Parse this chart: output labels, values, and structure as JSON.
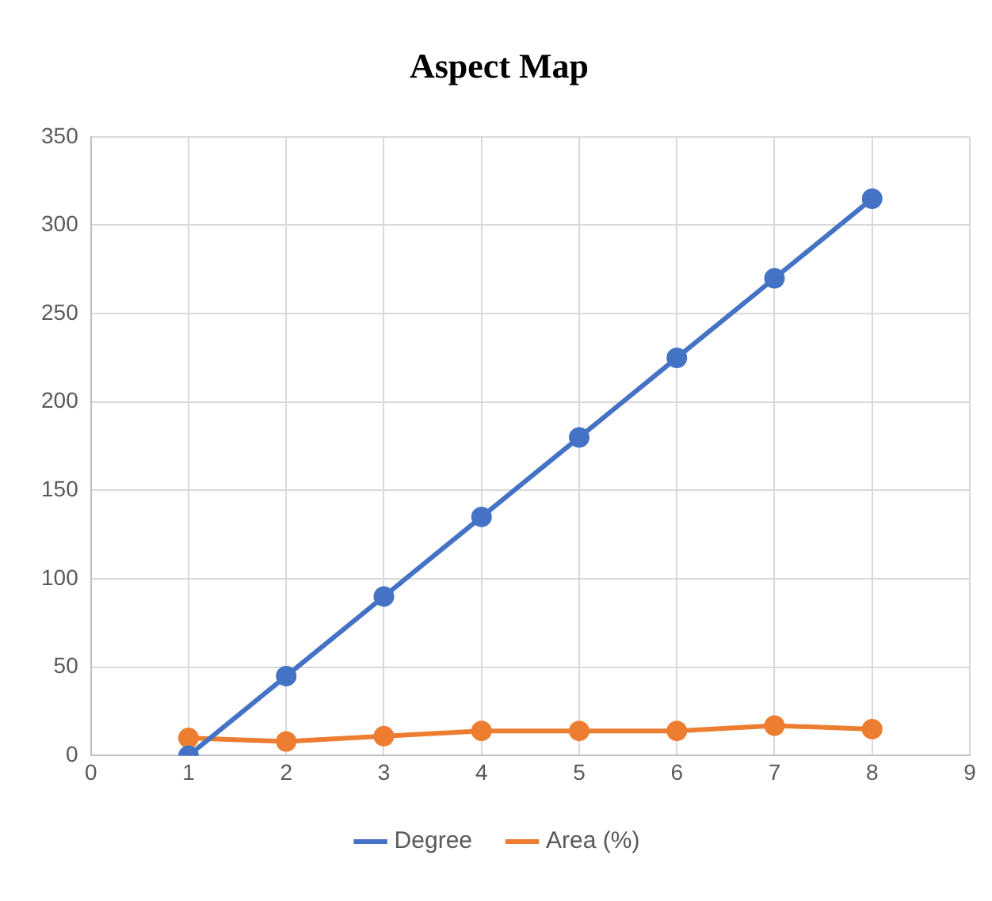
{
  "chart_data": {
    "type": "line",
    "title": "Aspect Map",
    "x": [
      1,
      2,
      3,
      4,
      5,
      6,
      7,
      8
    ],
    "series": [
      {
        "name": "Degree",
        "color": "#4472c4",
        "values": [
          0,
          45,
          90,
          135,
          180,
          225,
          270,
          315
        ]
      },
      {
        "name": "Area (%)",
        "color": "#ed7d31",
        "values": [
          10,
          8,
          11,
          14,
          14,
          14,
          17,
          15
        ]
      }
    ],
    "xlim": [
      0,
      9
    ],
    "xticks": [
      0,
      1,
      2,
      3,
      4,
      5,
      6,
      7,
      8,
      9
    ],
    "ylim": [
      0,
      350
    ],
    "yticks": [
      0,
      50,
      100,
      150,
      200,
      250,
      300,
      350
    ],
    "grid": true,
    "legend": "bottom",
    "marker": "circle",
    "line_style": "solid"
  }
}
